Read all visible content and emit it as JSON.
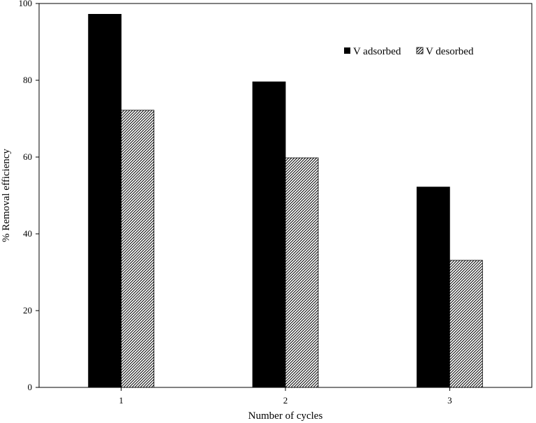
{
  "chart_data": {
    "type": "bar",
    "categories": [
      "1",
      "2",
      "3"
    ],
    "series": [
      {
        "name": "V adsorbed",
        "values": [
          97.2,
          79.6,
          52.2
        ],
        "color": "#000000",
        "pattern": "solid"
      },
      {
        "name": "V desorbed",
        "values": [
          72.2,
          59.8,
          33.1
        ],
        "color": "#000000",
        "pattern": "diagonal-hatch"
      }
    ],
    "xlabel": "Number of cycles",
    "ylabel": "% Removal  efficiency",
    "ylim": [
      0,
      100
    ],
    "yticks": [
      "0",
      "20",
      "40",
      "60",
      "80",
      "100"
    ],
    "grid": false,
    "legend_position": "top-right"
  }
}
